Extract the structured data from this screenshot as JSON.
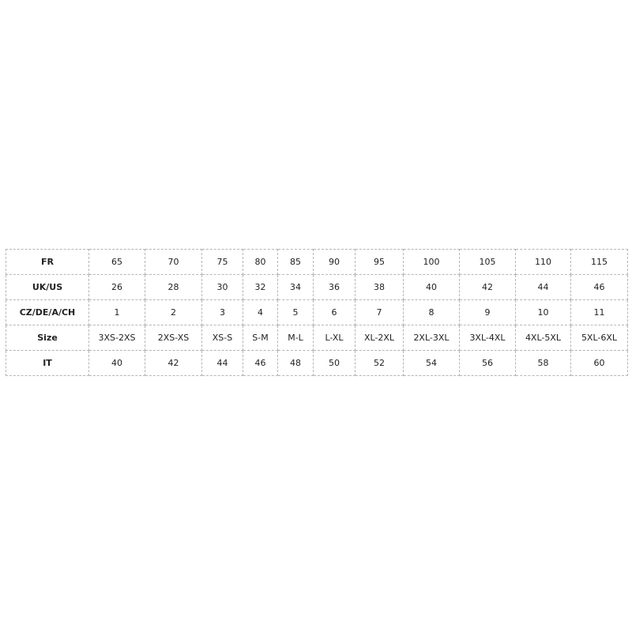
{
  "table": {
    "rows": [
      {
        "label": "FR",
        "values": [
          "65",
          "70",
          "75",
          "80",
          "85",
          "90",
          "95",
          "100",
          "105",
          "110",
          "115"
        ]
      },
      {
        "label": "UK/US",
        "values": [
          "26",
          "28",
          "30",
          "32",
          "34",
          "36",
          "38",
          "40",
          "42",
          "44",
          "46"
        ]
      },
      {
        "label": "CZ/DE/A/CH",
        "values": [
          "1",
          "2",
          "3",
          "4",
          "5",
          "6",
          "7",
          "8",
          "9",
          "10",
          "11"
        ]
      },
      {
        "label": "Size",
        "values": [
          "3XS-2XS",
          "2XS-XS",
          "XS-S",
          "S-M",
          "M-L",
          "L-XL",
          "XL-2XL",
          "2XL-3XL",
          "3XL-4XL",
          "4XL-5XL",
          "5XL-6XL"
        ]
      },
      {
        "label": "IT",
        "values": [
          "40",
          "42",
          "44",
          "46",
          "48",
          "50",
          "52",
          "54",
          "56",
          "58",
          "60"
        ]
      }
    ]
  }
}
